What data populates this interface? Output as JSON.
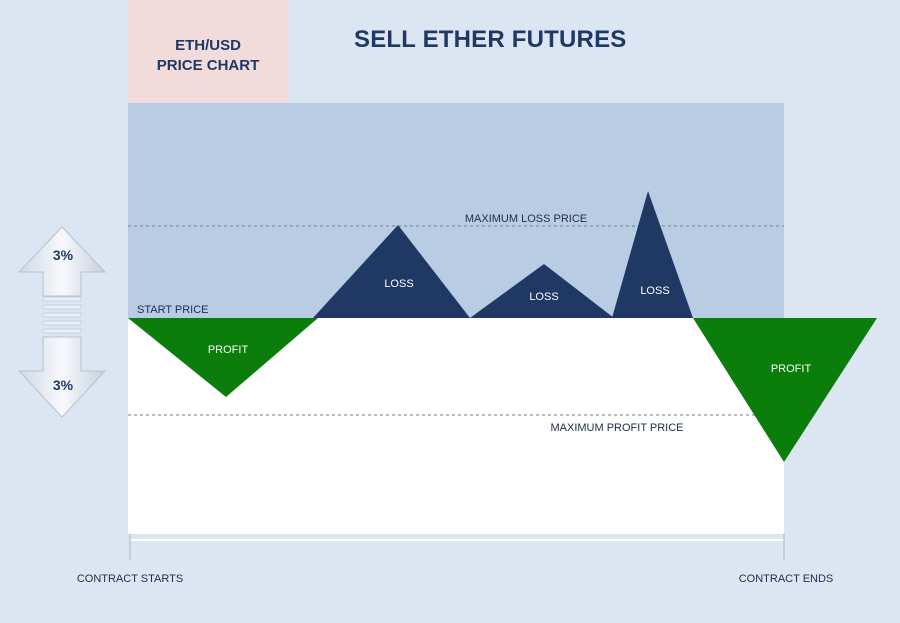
{
  "header": {
    "instrument_line1": "ETH/USD",
    "instrument_line2": "PRICE CHART",
    "title": "SELL ETHER FUTURES"
  },
  "levels": {
    "maximum_loss": "MAXIMUM LOSS PRICE",
    "start": "START PRICE",
    "maximum_profit": "MAXIMUM PROFIT PRICE"
  },
  "regions": {
    "profit_1": "PROFIT",
    "loss_1": "LOSS",
    "loss_2": "LOSS",
    "loss_3": "LOSS",
    "profit_2": "PROFIT"
  },
  "range_arrow": {
    "up_pct": "3%",
    "down_pct": "3%"
  },
  "timeline": {
    "start": "CONTRACT STARTS",
    "end": "CONTRACT ENDS"
  },
  "colors": {
    "background": "#dce6f2",
    "loss_zone": "#b8cce4",
    "profit_zone": "#ffffff",
    "loss_triangle": "#1f3864",
    "profit_triangle": "#0a7d0a",
    "title_text": "#1f3864",
    "pill": "#f2dcdb"
  }
}
